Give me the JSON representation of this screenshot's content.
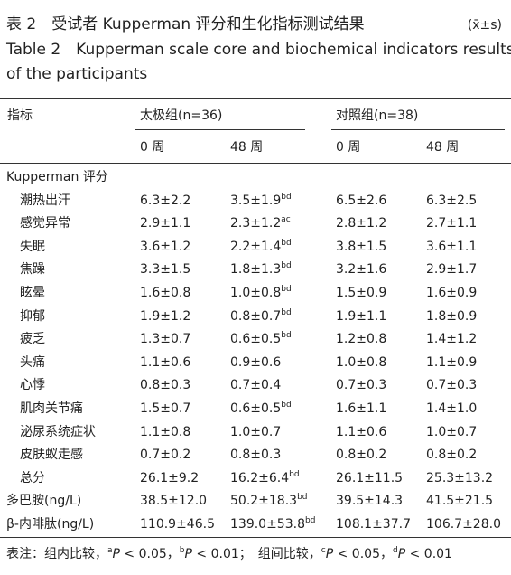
{
  "title": {
    "cn": "表 2　受试者 Kupperman 评分和生化指标测试结果",
    "stat": "(x̄±s)",
    "en1": "Table 2　Kupperman scale core and biochemical indicators results",
    "en2": "of the participants"
  },
  "header": {
    "indicator": "指标",
    "groups": [
      "太极组(n=36)",
      "对照组(n=38)"
    ],
    "weeks": [
      "0 周",
      "48 周",
      "0 周",
      "48 周"
    ]
  },
  "table": {
    "rows": [
      {
        "label": "Kupperman 评分",
        "indent": false,
        "cells": []
      },
      {
        "label": "潮热出汗",
        "indent": true,
        "cells": [
          {
            "v": "6.3±2.2"
          },
          {
            "v": "3.5±1.9",
            "sup": "bd"
          },
          {
            "v": "6.5±2.6"
          },
          {
            "v": "6.3±2.5"
          }
        ]
      },
      {
        "label": "感觉异常",
        "indent": true,
        "cells": [
          {
            "v": "2.9±1.1"
          },
          {
            "v": "2.3±1.2",
            "sup": "ac"
          },
          {
            "v": "2.8±1.2"
          },
          {
            "v": "2.7±1.1"
          }
        ]
      },
      {
        "label": "失眠",
        "indent": true,
        "cells": [
          {
            "v": "3.6±1.2"
          },
          {
            "v": "2.2±1.4",
            "sup": "bd"
          },
          {
            "v": "3.8±1.5"
          },
          {
            "v": "3.6±1.1"
          }
        ]
      },
      {
        "label": "焦躁",
        "indent": true,
        "cells": [
          {
            "v": "3.3±1.5"
          },
          {
            "v": "1.8±1.3",
            "sup": "bd"
          },
          {
            "v": "3.2±1.6"
          },
          {
            "v": "2.9±1.7"
          }
        ]
      },
      {
        "label": "眩晕",
        "indent": true,
        "cells": [
          {
            "v": "1.6±0.8"
          },
          {
            "v": "1.0±0.8",
            "sup": "bd"
          },
          {
            "v": "1.5±0.9"
          },
          {
            "v": "1.6±0.9"
          }
        ]
      },
      {
        "label": "抑郁",
        "indent": true,
        "cells": [
          {
            "v": "1.9±1.2"
          },
          {
            "v": "0.8±0.7",
            "sup": "bd"
          },
          {
            "v": "1.9±1.1"
          },
          {
            "v": "1.8±0.9"
          }
        ]
      },
      {
        "label": "疲乏",
        "indent": true,
        "cells": [
          {
            "v": "1.3±0.7"
          },
          {
            "v": "0.6±0.5",
            "sup": "bd"
          },
          {
            "v": "1.2±0.8"
          },
          {
            "v": "1.4±1.2"
          }
        ]
      },
      {
        "label": "头痛",
        "indent": true,
        "cells": [
          {
            "v": "1.1±0.6"
          },
          {
            "v": "0.9±0.6"
          },
          {
            "v": "1.0±0.8"
          },
          {
            "v": "1.1±0.9"
          }
        ]
      },
      {
        "label": "心悸",
        "indent": true,
        "cells": [
          {
            "v": "0.8±0.3"
          },
          {
            "v": "0.7±0.4"
          },
          {
            "v": "0.7±0.3"
          },
          {
            "v": "0.7±0.3"
          }
        ]
      },
      {
        "label": "肌肉关节痛",
        "indent": true,
        "cells": [
          {
            "v": "1.5±0.7"
          },
          {
            "v": "0.6±0.5",
            "sup": "bd"
          },
          {
            "v": "1.6±1.1"
          },
          {
            "v": "1.4±1.0"
          }
        ]
      },
      {
        "label": "泌尿系统症状",
        "indent": true,
        "cells": [
          {
            "v": "1.1±0.8"
          },
          {
            "v": "1.0±0.7"
          },
          {
            "v": "1.1±0.6"
          },
          {
            "v": "1.0±0.7"
          }
        ]
      },
      {
        "label": "皮肤蚁走感",
        "indent": true,
        "cells": [
          {
            "v": "0.7±0.2"
          },
          {
            "v": "0.8±0.3"
          },
          {
            "v": "0.8±0.2"
          },
          {
            "v": "0.8±0.2"
          }
        ]
      },
      {
        "label": "总分",
        "indent": true,
        "cells": [
          {
            "v": "26.1±9.2"
          },
          {
            "v": "16.2±6.4",
            "sup": "bd"
          },
          {
            "v": "26.1±11.5"
          },
          {
            "v": "25.3±13.2"
          }
        ]
      },
      {
        "label": "多巴胺(ng/L)",
        "indent": false,
        "cells": [
          {
            "v": "38.5±12.0"
          },
          {
            "v": "50.2±18.3",
            "sup": "bd"
          },
          {
            "v": "39.5±14.3"
          },
          {
            "v": "41.5±21.5"
          }
        ]
      },
      {
        "label": "β-内啡肽(ng/L)",
        "indent": false,
        "cells": [
          {
            "v": "110.9±46.5"
          },
          {
            "v": "139.0±53.8",
            "sup": "bd"
          },
          {
            "v": "108.1±37.7"
          },
          {
            "v": "106.7±28.0"
          }
        ]
      }
    ]
  },
  "footnote": [
    {
      "t": "表注：组内比较，",
      "style": "plain"
    },
    {
      "t": "a",
      "style": "sup"
    },
    {
      "t": "P",
      "style": "italic"
    },
    {
      "t": " < 0.05，",
      "style": "plain"
    },
    {
      "t": "b",
      "style": "sup"
    },
    {
      "t": "P",
      "style": "italic"
    },
    {
      "t": " < 0.01；　组间比较，",
      "style": "plain"
    },
    {
      "t": "c",
      "style": "sup"
    },
    {
      "t": "P",
      "style": "italic"
    },
    {
      "t": " < 0.05，",
      "style": "plain"
    },
    {
      "t": "d",
      "style": "sup"
    },
    {
      "t": "P",
      "style": "italic"
    },
    {
      "t": " < 0.01",
      "style": "plain"
    }
  ]
}
